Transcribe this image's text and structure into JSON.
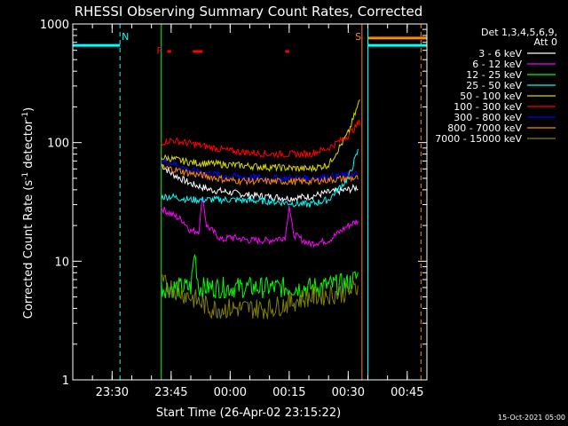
{
  "chart_data": {
    "type": "line",
    "title": "RHESSI Observing Summary Count Rates, Corrected",
    "xlabel": "Start Time (26-Apr-02 23:15:22)",
    "ylabel_main": "Corrected Count Rate (s",
    "ylabel_sup1": "-1",
    "ylabel_mid": " detector",
    "ylabel_sup2": "-1",
    "ylabel_end": ")",
    "yscale": "log",
    "ylim": [
      1,
      1000
    ],
    "xlim_min": [
      -20,
      70
    ],
    "x_unit": "minutes after 23:40 on 26-Apr-02",
    "y_ticks": [
      {
        "value": 1,
        "label": "1"
      },
      {
        "value": 10,
        "label": "10"
      },
      {
        "value": 100,
        "label": "100"
      },
      {
        "value": 1000,
        "label": "1000"
      }
    ],
    "x_ticks": [
      {
        "value": -10,
        "label": "23:30"
      },
      {
        "value": 5,
        "label": "23:45"
      },
      {
        "value": 20,
        "label": "00:00"
      },
      {
        "value": 35,
        "label": "00:15"
      },
      {
        "value": 50,
        "label": "00:30"
      },
      {
        "value": 65,
        "label": "00:45"
      }
    ],
    "legend": {
      "placement": "right",
      "header": [
        "Det 1,3,4,5,6,9,",
        "Att 0"
      ]
    },
    "series": [
      {
        "name": "3 - 6 keV",
        "color": "#ffffff",
        "points": [
          [
            2.5,
            65
          ],
          [
            5,
            55
          ],
          [
            10,
            45
          ],
          [
            15,
            40
          ],
          [
            20,
            38
          ],
          [
            25,
            36
          ],
          [
            30,
            35
          ],
          [
            35,
            34
          ],
          [
            40,
            35
          ],
          [
            45,
            38
          ],
          [
            50,
            40
          ],
          [
            52.5,
            42
          ]
        ]
      },
      {
        "name": "6 - 12 keV",
        "color": "#ff00ff",
        "points": [
          [
            2.5,
            28
          ],
          [
            5,
            25
          ],
          [
            8,
            22
          ],
          [
            10,
            18
          ],
          [
            12,
            18
          ],
          [
            13,
            35
          ],
          [
            14,
            20
          ],
          [
            18,
            15
          ],
          [
            20,
            16
          ],
          [
            25,
            15
          ],
          [
            30,
            15
          ],
          [
            34,
            16
          ],
          [
            35,
            30
          ],
          [
            36,
            17
          ],
          [
            40,
            14
          ],
          [
            45,
            15
          ],
          [
            50,
            20
          ],
          [
            52.5,
            22
          ]
        ]
      },
      {
        "name": "12 - 25 keV",
        "color": "#00ff00",
        "points": [
          [
            2.5,
            6
          ],
          [
            5,
            6
          ],
          [
            10,
            6
          ],
          [
            11,
            12
          ],
          [
            12,
            6
          ],
          [
            20,
            6
          ],
          [
            30,
            6
          ],
          [
            40,
            6
          ],
          [
            50,
            6.5
          ],
          [
            52.5,
            7.5
          ]
        ]
      },
      {
        "name": "25 - 50 keV",
        "color": "#00ffff",
        "points": [
          [
            2.5,
            35
          ],
          [
            5,
            35
          ],
          [
            10,
            33
          ],
          [
            20,
            33
          ],
          [
            30,
            32
          ],
          [
            40,
            30
          ],
          [
            45,
            33
          ],
          [
            50,
            50
          ],
          [
            52.5,
            85
          ]
        ]
      },
      {
        "name": "50 - 100 keV",
        "color": "#d8d800",
        "points": [
          [
            2.5,
            75
          ],
          [
            5,
            73
          ],
          [
            10,
            68
          ],
          [
            20,
            65
          ],
          [
            30,
            62
          ],
          [
            40,
            60
          ],
          [
            45,
            65
          ],
          [
            50,
            120
          ],
          [
            53,
            230
          ]
        ]
      },
      {
        "name": "100 - 300 keV",
        "color": "#ff0000",
        "points": [
          [
            2.5,
            100
          ],
          [
            5,
            105
          ],
          [
            10,
            98
          ],
          [
            20,
            85
          ],
          [
            30,
            80
          ],
          [
            40,
            80
          ],
          [
            45,
            90
          ],
          [
            50,
            115
          ],
          [
            53,
            150
          ]
        ]
      },
      {
        "name": "300 - 800 keV",
        "color": "#0000ff",
        "points": [
          [
            2.5,
            70
          ],
          [
            5,
            68
          ],
          [
            10,
            58
          ],
          [
            20,
            52
          ],
          [
            30,
            50
          ],
          [
            40,
            50
          ],
          [
            50,
            53
          ],
          [
            52.5,
            54
          ]
        ]
      },
      {
        "name": "800 - 7000 keV",
        "color": "#ff8800",
        "points": [
          [
            2.5,
            62
          ],
          [
            5,
            60
          ],
          [
            10,
            55
          ],
          [
            20,
            48
          ],
          [
            30,
            47
          ],
          [
            40,
            47
          ],
          [
            50,
            50
          ],
          [
            52.5,
            50
          ]
        ]
      },
      {
        "name": "7000 - 15000 keV",
        "color": "#808000",
        "points": [
          [
            2.5,
            6.5
          ],
          [
            5,
            6
          ],
          [
            10,
            5
          ],
          [
            15,
            4
          ],
          [
            20,
            4
          ],
          [
            30,
            4
          ],
          [
            40,
            5
          ],
          [
            50,
            5.5
          ],
          [
            52.5,
            6
          ]
        ]
      }
    ],
    "annotations": [
      {
        "text": "N",
        "color": "#00ffff",
        "x": -8
      },
      {
        "text": "S",
        "color": "#ff8800",
        "x": 53
      },
      {
        "text": "F",
        "color": "#ff0000",
        "x": 2
      }
    ],
    "flare_bars": [
      [
        4,
        5
      ],
      [
        10.5,
        13
      ],
      [
        34,
        35
      ]
    ],
    "night_bars": [
      {
        "from": -20,
        "to": -8,
        "y": 660
      },
      {
        "from": 55,
        "to": 70,
        "y": 660
      }
    ],
    "saa_bar": {
      "from": 55,
      "to": 70,
      "y": 760
    },
    "vertical_markers": [
      {
        "x": -8,
        "color": "#00ffff",
        "style": "dashed"
      },
      {
        "x": 55,
        "color": "#00ffff",
        "style": "solid"
      },
      {
        "x": 53.5,
        "color": "#ff8800",
        "style": "solid"
      },
      {
        "x": 68.5,
        "color": "#ff8800",
        "style": "dashed"
      },
      {
        "x": 2.5,
        "color": "#00ff00",
        "style": "solid"
      }
    ],
    "footer": "15-Oct-2021 05:00"
  }
}
